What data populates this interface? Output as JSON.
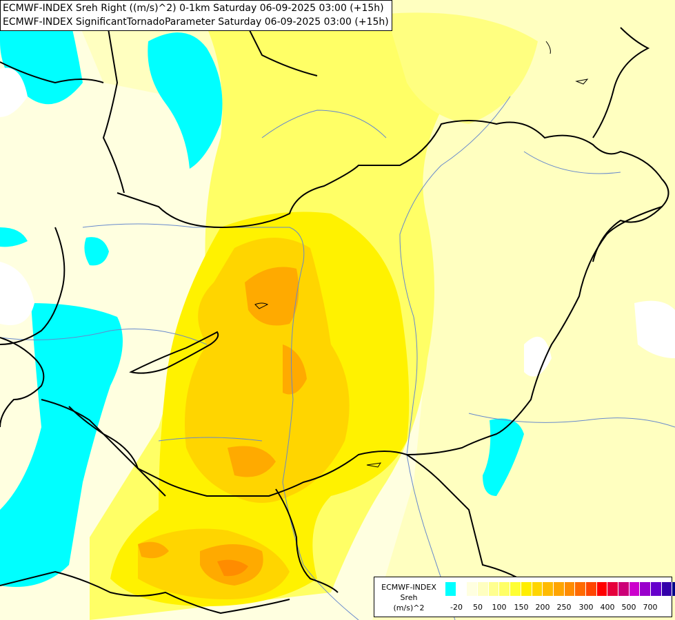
{
  "title": {
    "line1": "ECMWF-INDEX Sreh Right ((m/s)^2) 0-1km Saturday 06-09-2025 03:00 (+15h)",
    "line2": "ECMWF-INDEX SignificantTornadoParameter Saturday 06-09-2025 03:00 (+15h)"
  },
  "legend": {
    "line1": "ECMWF-INDEX",
    "line2": "Sreh",
    "line3": "(m/s)^2",
    "colors": [
      "#00ffff",
      "#ffffff",
      "#ffffe0",
      "#ffffc0",
      "#ffff90",
      "#ffff66",
      "#ffff33",
      "#ffee00",
      "#ffd500",
      "#ffbb00",
      "#ffa500",
      "#ff8c00",
      "#ff6a00",
      "#ff4500",
      "#ff0000",
      "#e6003c",
      "#cc0077",
      "#cc00cc",
      "#9900cc",
      "#6600cc",
      "#3300aa",
      "#000088"
    ],
    "ticks": [
      "-20",
      "50",
      "100",
      "150",
      "200",
      "250",
      "300",
      "400",
      "500",
      "700"
    ]
  },
  "map": {
    "colors": {
      "background": "#ffffe0",
      "pale_yellow": "#ffffc0",
      "yellow": "#ffff66",
      "bright_yellow": "#fff200",
      "gold": "#ffd500",
      "orange": "#ffaa00",
      "dark_orange": "#ff8c00",
      "cyan": "#00ffff",
      "white": "#ffffff",
      "border": "#000000",
      "river": "#6688cc"
    }
  }
}
